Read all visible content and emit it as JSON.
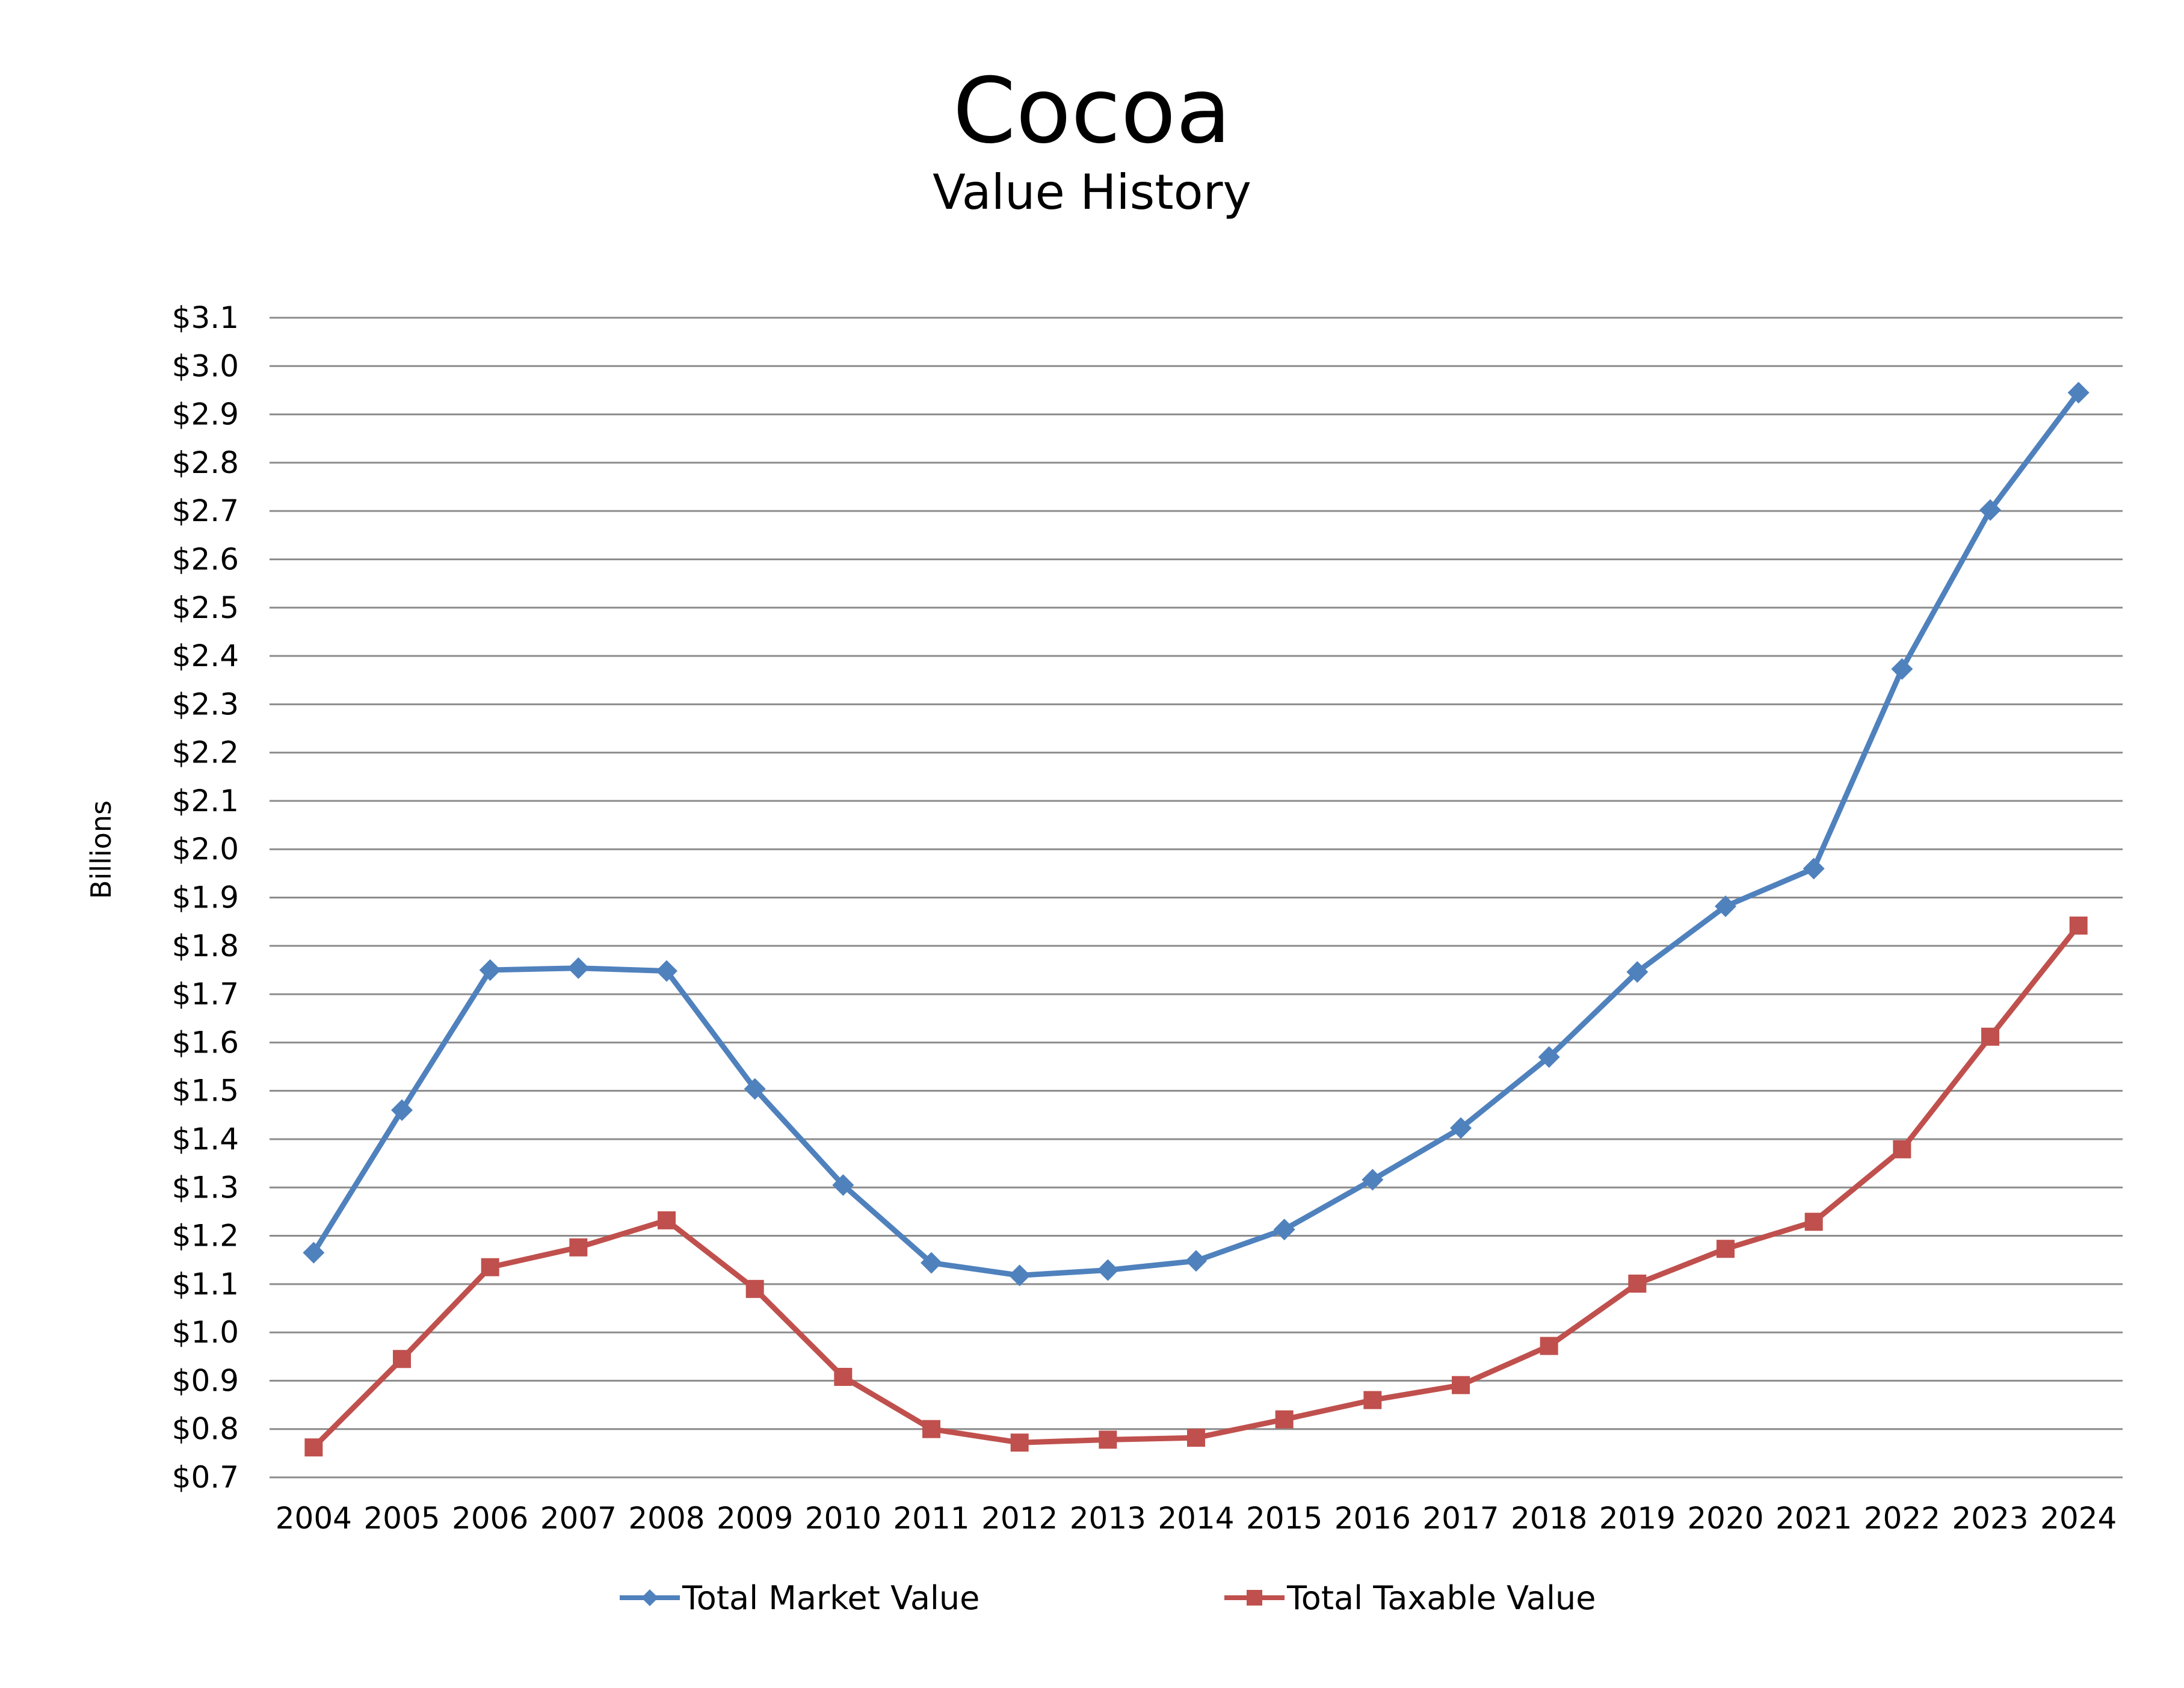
{
  "chart_data": {
    "type": "line",
    "title": "Cocoa",
    "subtitle": "Value History",
    "xlabel": "",
    "ylabel": "Billions",
    "categories": [
      "2004",
      "2005",
      "2006",
      "2007",
      "2008",
      "2009",
      "2010",
      "2011",
      "2012",
      "2013",
      "2014",
      "2015",
      "2016",
      "2017",
      "2018",
      "2019",
      "2020",
      "2021",
      "2022",
      "2023",
      "2024"
    ],
    "ylim": [
      0.7,
      3.1
    ],
    "yticks": [
      0.7,
      0.8,
      0.9,
      1.0,
      1.1,
      1.2,
      1.3,
      1.4,
      1.5,
      1.6,
      1.7,
      1.8,
      1.9,
      2.0,
      2.1,
      2.2,
      2.3,
      2.4,
      2.5,
      2.6,
      2.7,
      2.8,
      2.9,
      3.0,
      3.1
    ],
    "ytick_labels": [
      "$0.7",
      "$0.8",
      "$0.9",
      "$1.0",
      "$1.1",
      "$1.2",
      "$1.3",
      "$1.4",
      "$1.5",
      "$1.6",
      "$1.7",
      "$1.8",
      "$1.9",
      "$2.0",
      "$2.1",
      "$2.2",
      "$2.3",
      "$2.4",
      "$2.5",
      "$2.6",
      "$2.7",
      "$2.8",
      "$2.9",
      "$3.0",
      "$3.1"
    ],
    "grid": "horizontal",
    "legend_position": "bottom",
    "series": [
      {
        "name": "Total Market Value",
        "color": "#4F81BD",
        "marker": "diamond",
        "values": [
          1.165,
          1.46,
          1.75,
          1.754,
          1.748,
          1.504,
          1.305,
          1.144,
          1.118,
          1.129,
          1.148,
          1.213,
          1.316,
          1.423,
          1.57,
          1.746,
          1.882,
          1.96,
          2.373,
          2.702,
          2.945
        ]
      },
      {
        "name": "Total Taxable Value",
        "color": "#C0504D",
        "marker": "square",
        "values": [
          0.762,
          0.945,
          1.135,
          1.176,
          1.232,
          1.09,
          0.908,
          0.8,
          0.772,
          0.778,
          0.782,
          0.82,
          0.86,
          0.891,
          0.972,
          1.101,
          1.173,
          1.229,
          1.379,
          1.612,
          1.842
        ]
      }
    ]
  }
}
